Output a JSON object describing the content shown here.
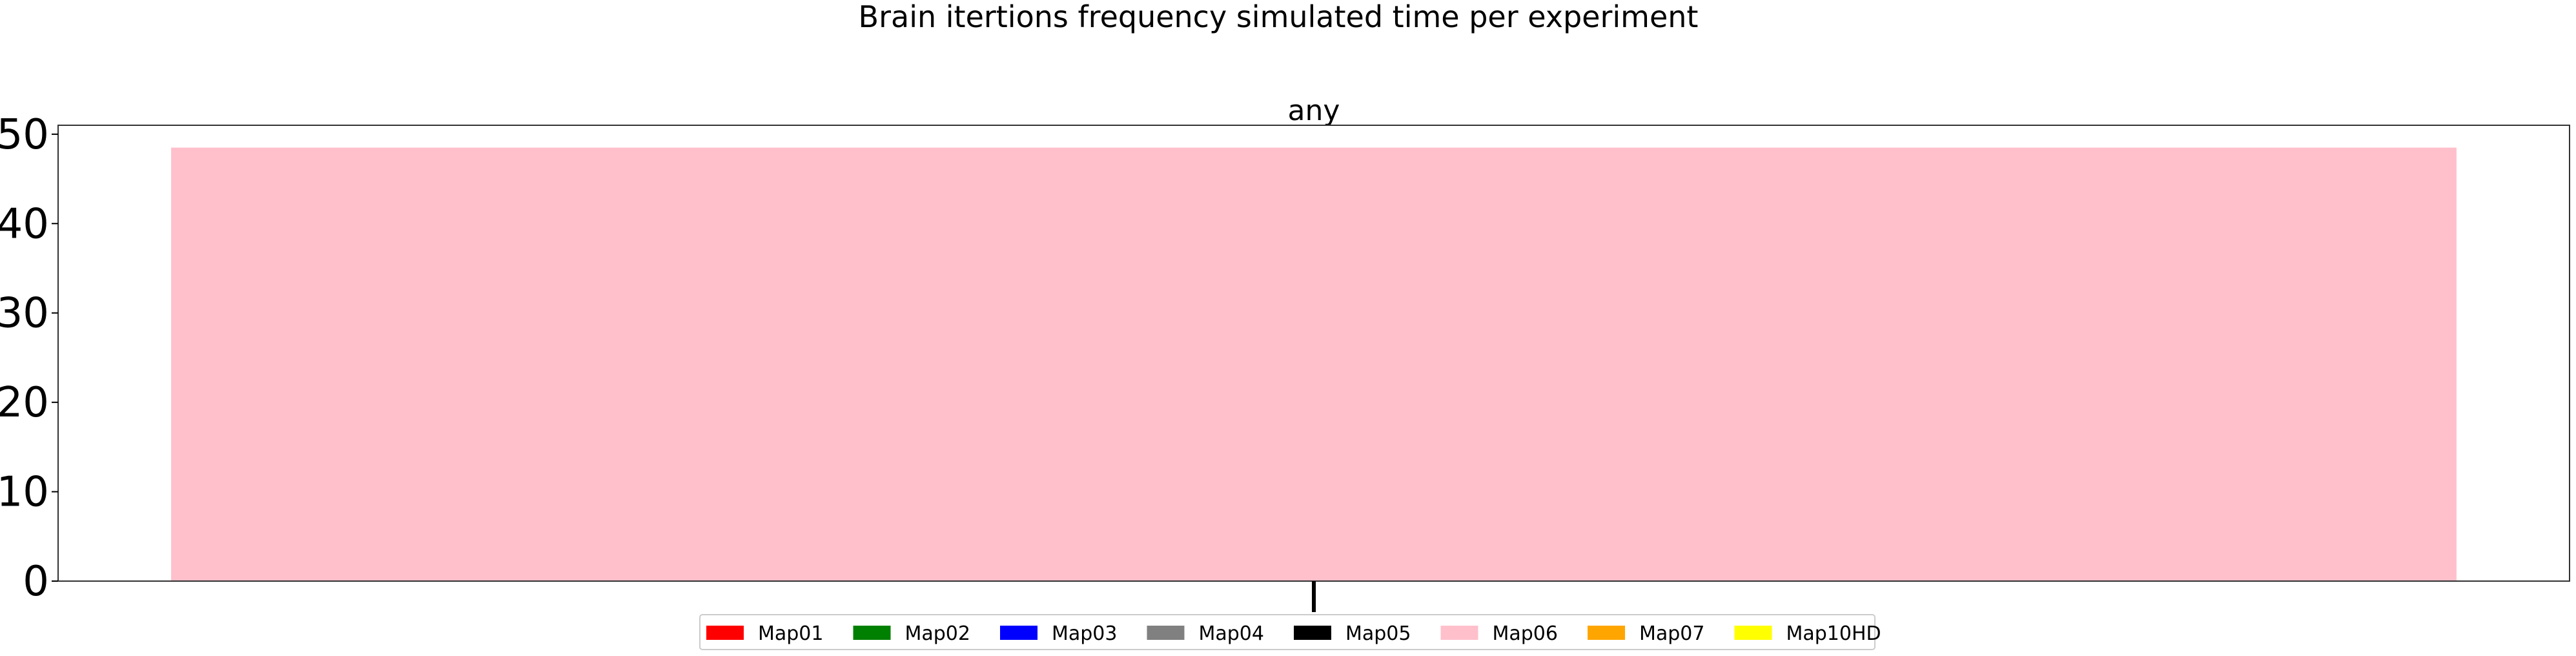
{
  "figure": {
    "suptitle": "Brain itertions frequency simulated time per experiment"
  },
  "chart_data": {
    "type": "bar",
    "title": "any",
    "xlabel": "",
    "ylabel": "",
    "categories": [
      ""
    ],
    "series": [
      {
        "name": "Map06",
        "color": "#ffc0cb",
        "values": [
          48.5
        ]
      }
    ],
    "ylim": [
      0,
      51
    ],
    "yticks": [
      0,
      10,
      20,
      30,
      40,
      50
    ],
    "grid": false,
    "legend": {
      "placement": "bottom-center",
      "entries": [
        {
          "label": "Map01",
          "color": "#ff0000"
        },
        {
          "label": "Map02",
          "color": "#008000"
        },
        {
          "label": "Map03",
          "color": "#0000ff"
        },
        {
          "label": "Map04",
          "color": "#808080"
        },
        {
          "label": "Map05",
          "color": "#000000"
        },
        {
          "label": "Map06",
          "color": "#ffc0cb"
        },
        {
          "label": "Map07",
          "color": "#ffa500"
        },
        {
          "label": "Map10HD",
          "color": "#ffff00"
        }
      ]
    }
  }
}
